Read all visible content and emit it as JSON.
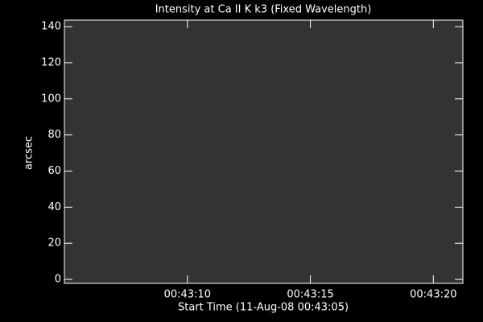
{
  "chart_data": {
    "type": "image",
    "title": "Intensity at Ca II K k3 (Fixed Wavelength)",
    "xlabel": "Start Time (11-Aug-08 00:43:05)",
    "ylabel": "arcsec",
    "color": "#333333",
    "xlim": [
      5,
      21.2
    ],
    "xticks": [
      {
        "value": 10,
        "label": "00:43:10"
      },
      {
        "value": 15,
        "label": "00:43:15"
      },
      {
        "value": 20,
        "label": "00:43:20"
      }
    ],
    "ylim": [
      -2.2,
      143.6
    ],
    "yticks": [
      0,
      20,
      40,
      60,
      80,
      100,
      120,
      140
    ]
  }
}
